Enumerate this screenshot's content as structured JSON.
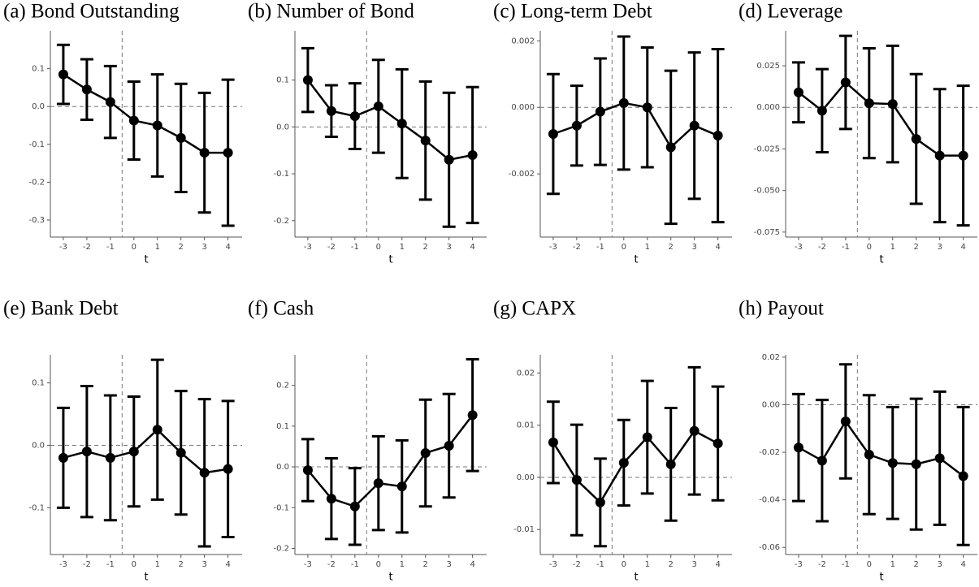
{
  "chart_data": [
    {
      "type": "errorbar",
      "title": "(a) Bond Outstanding",
      "x_label": "t",
      "x": [
        -3,
        -2,
        -1,
        0,
        1,
        2,
        3,
        4
      ],
      "values": [
        0.085,
        0.045,
        0.012,
        -0.037,
        -0.05,
        -0.083,
        -0.122,
        -0.122
      ],
      "errors": [
        0.078,
        0.08,
        0.095,
        0.103,
        0.135,
        0.143,
        0.158,
        0.193
      ],
      "xlim": [
        -3.55,
        4.6
      ],
      "xticks": [
        -3,
        -2,
        -1,
        0,
        1,
        2,
        3,
        4
      ],
      "ylim": [
        -0.345,
        0.2
      ],
      "yticks": [
        0.1,
        {
          "value": 0,
          "label": "0.0"
        },
        -0.1,
        -0.2,
        -0.3
      ],
      "reference_lines": {
        "x": -0.5,
        "y": 0
      },
      "color": "#000000"
    },
    {
      "type": "errorbar",
      "title": "(b) Number of Bond",
      "x_label": "t",
      "x": [
        -3,
        -2,
        -1,
        0,
        1,
        2,
        3,
        4
      ],
      "values": [
        0.1,
        0.034,
        0.023,
        0.044,
        0.007,
        -0.029,
        -0.07,
        -0.06
      ],
      "errors": [
        0.068,
        0.055,
        0.07,
        0.099,
        0.116,
        0.126,
        0.143,
        0.145
      ],
      "xlim": [
        -3.55,
        4.6
      ],
      "xticks": [
        -3,
        -2,
        -1,
        0,
        1,
        2,
        3,
        4
      ],
      "ylim": [
        -0.235,
        0.205
      ],
      "yticks": [
        0.1,
        {
          "value": 0,
          "label": "0.0"
        },
        -0.1,
        -0.2
      ],
      "reference_lines": {
        "x": -0.5,
        "y": 0
      },
      "color": "#000000"
    },
    {
      "type": "errorbar",
      "title": "(c) Long-term Debt",
      "x_label": "t",
      "x": [
        -3,
        -2,
        -1,
        0,
        1,
        2,
        3,
        4
      ],
      "values": [
        -0.0008,
        -0.00055,
        -0.00013,
        0.00013,
        0,
        -0.0012,
        -0.00055,
        -0.00085
      ],
      "errors": [
        0.0018,
        0.0012,
        0.0016,
        0.002,
        0.0018,
        0.0023,
        0.0022,
        0.0026
      ],
      "xlim": [
        -3.55,
        4.6
      ],
      "xticks": [
        -3,
        -2,
        -1,
        0,
        1,
        2,
        3,
        4
      ],
      "ylim": [
        -0.0039,
        0.0023
      ],
      "yticks": [
        0.002,
        {
          "value": 0,
          "label": "0.000"
        },
        -0.002
      ],
      "reference_lines": {
        "x": -0.5,
        "y": 0
      },
      "color": "#000000"
    },
    {
      "type": "errorbar",
      "title": "(d) Leverage",
      "x_label": "t",
      "x": [
        -3,
        -2,
        -1,
        0,
        1,
        2,
        3,
        4
      ],
      "values": [
        0.009,
        -0.002,
        0.015,
        0.0025,
        0.002,
        -0.019,
        -0.029,
        -0.029
      ],
      "errors": [
        0.018,
        0.025,
        0.028,
        0.033,
        0.035,
        0.039,
        0.04,
        0.042
      ],
      "xlim": [
        -3.55,
        4.6
      ],
      "xticks": [
        -3,
        -2,
        -1,
        0,
        1,
        2,
        3,
        4
      ],
      "ylim": [
        -0.078,
        0.046
      ],
      "yticks": [
        0.025,
        {
          "value": 0,
          "label": "0.000"
        },
        -0.025,
        {
          "value": -0.05,
          "label": "-0.050"
        },
        -0.075
      ],
      "reference_lines": {
        "x": -0.5,
        "y": 0
      },
      "color": "#000000"
    },
    {
      "type": "errorbar",
      "title": "(e) Bank Debt",
      "x_label": "t",
      "x": [
        -3,
        -2,
        -1,
        0,
        1,
        2,
        3,
        4
      ],
      "values": [
        -0.02,
        -0.01,
        -0.02,
        -0.01,
        0.025,
        -0.012,
        -0.044,
        -0.038
      ],
      "errors": [
        0.08,
        0.105,
        0.1,
        0.088,
        0.112,
        0.099,
        0.118,
        0.109
      ],
      "xlim": [
        -3.55,
        4.6
      ],
      "xticks": [
        -3,
        -2,
        -1,
        0,
        1,
        2,
        3,
        4
      ],
      "ylim": [
        -0.175,
        0.145
      ],
      "yticks": [
        0.1,
        {
          "value": 0,
          "label": "0.0"
        },
        -0.1
      ],
      "reference_lines": {
        "x": -0.5,
        "y": 0
      },
      "color": "#000000"
    },
    {
      "type": "errorbar",
      "title": "(f) Cash",
      "x_label": "t",
      "x": [
        -3,
        -2,
        -1,
        0,
        1,
        2,
        3,
        4
      ],
      "values": [
        -0.008,
        -0.078,
        -0.097,
        -0.04,
        -0.048,
        0.034,
        0.052,
        0.127
      ],
      "errors": [
        0.076,
        0.099,
        0.094,
        0.115,
        0.113,
        0.131,
        0.127,
        0.137
      ],
      "xlim": [
        -3.55,
        4.6
      ],
      "xticks": [
        -3,
        -2,
        -1,
        0,
        1,
        2,
        3,
        4
      ],
      "ylim": [
        -0.215,
        0.275
      ],
      "yticks": [
        0.2,
        0.1,
        {
          "value": 0,
          "label": "0.0"
        },
        -0.1,
        -0.2
      ],
      "reference_lines": {
        "x": -0.5,
        "y": 0
      },
      "color": "#000000"
    },
    {
      "type": "errorbar",
      "title": "(g) CAPX",
      "x_label": "t",
      "x": [
        -3,
        -2,
        -1,
        0,
        1,
        2,
        3,
        4
      ],
      "values": [
        0.0067,
        -0.0005,
        -0.0048,
        0.0028,
        0.0077,
        0.0025,
        0.0089,
        0.0065
      ],
      "errors": [
        0.0078,
        0.0106,
        0.0084,
        0.0082,
        0.0108,
        0.0108,
        0.0122,
        0.0109
      ],
      "xlim": [
        -3.55,
        4.6
      ],
      "xticks": [
        -3,
        -2,
        -1,
        0,
        1,
        2,
        3,
        4
      ],
      "ylim": [
        -0.0148,
        0.0235
      ],
      "yticks": [
        0.02,
        0.01,
        {
          "value": 0,
          "label": "0.00"
        },
        -0.01
      ],
      "reference_lines": {
        "x": -0.5,
        "y": 0
      },
      "color": "#000000"
    },
    {
      "type": "errorbar",
      "title": "(h) Payout",
      "x_label": "t",
      "x": [
        -3,
        -2,
        -1,
        0,
        1,
        2,
        3,
        4
      ],
      "values": [
        -0.018,
        -0.0235,
        -0.007,
        -0.021,
        -0.0245,
        -0.025,
        -0.0225,
        -0.03
      ],
      "errors": [
        0.0225,
        0.0255,
        0.024,
        0.025,
        0.0235,
        0.0275,
        0.028,
        0.029
      ],
      "xlim": [
        -3.55,
        4.6
      ],
      "xticks": [
        -3,
        -2,
        -1,
        0,
        1,
        2,
        3,
        4
      ],
      "ylim": [
        -0.063,
        0.021
      ],
      "yticks": [
        0.02,
        {
          "value": 0,
          "label": "0.00"
        },
        -0.02,
        -0.04,
        -0.06
      ],
      "reference_lines": {
        "x": -0.5,
        "y": 0
      },
      "color": "#000000"
    }
  ]
}
